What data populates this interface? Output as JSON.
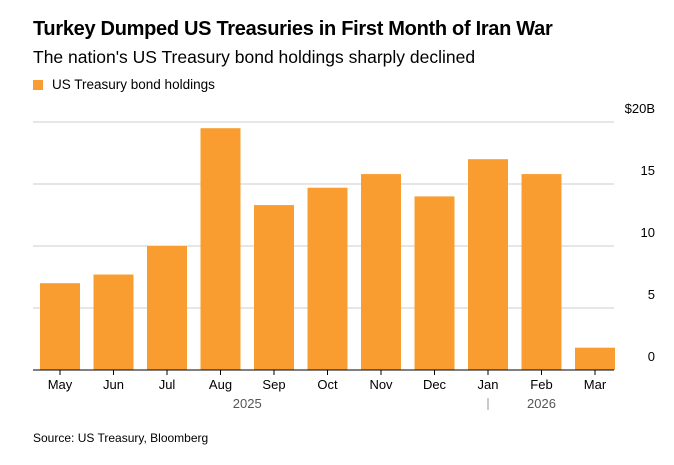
{
  "title": "Turkey Dumped US Treasuries in First Month of Iran War",
  "subtitle": "The nation's US Treasury bond holdings sharply declined",
  "legend": {
    "label": "US Treasury bond holdings",
    "color": "#f99d31"
  },
  "source": "Source: US Treasury, Bloomberg",
  "chart_data": {
    "type": "bar",
    "categories": [
      "May",
      "Jun",
      "Jul",
      "Aug",
      "Sep",
      "Oct",
      "Nov",
      "Dec",
      "Jan",
      "Feb",
      "Mar"
    ],
    "series": [
      {
        "name": "US Treasury bond holdings",
        "values": [
          7.0,
          7.7,
          10.0,
          19.5,
          13.3,
          14.7,
          15.8,
          14.0,
          17.0,
          15.8,
          1.8
        ]
      }
    ],
    "year_labels": [
      {
        "label": "2025",
        "from": "May",
        "to": "Dec"
      },
      {
        "label": "2026",
        "from": "Jan",
        "to": "Mar"
      }
    ],
    "yticks": [
      0,
      5,
      10,
      15,
      20
    ],
    "ytick_labels": [
      "0",
      "5",
      "10",
      "15",
      "$20B"
    ],
    "ylim": [
      0,
      20
    ],
    "grid": true,
    "legend_position": "top-left",
    "colors": {
      "bar": "#f99d31",
      "grid": "#cccccc",
      "axis": "#000000"
    }
  }
}
